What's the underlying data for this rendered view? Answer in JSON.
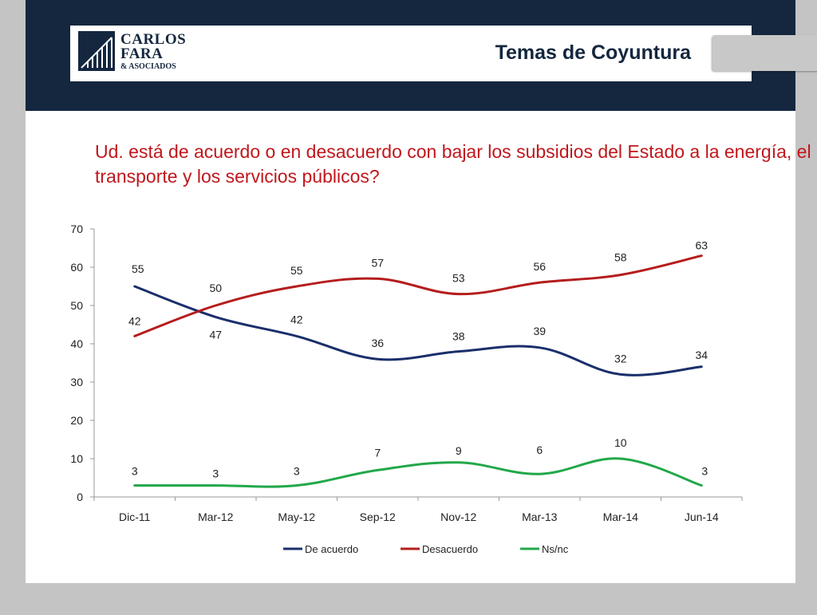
{
  "header": {
    "logo": {
      "line1": "CARLOS",
      "line2": "FARA",
      "line3": "& ASOCIADOS"
    },
    "title": "Temas de Coyuntura"
  },
  "question": "Ud. está de acuerdo o en desacuerdo con bajar los subsidios del Estado a la energía, el transporte y los servicios públicos?",
  "colors": {
    "navy": "#14273f",
    "red": "#c0171c",
    "green": "#22a84a",
    "series_blue": "#1a2f6b",
    "series_red": "#b51d1d"
  },
  "chart_data": {
    "type": "line",
    "title": "",
    "xlabel": "",
    "ylabel": "",
    "categories": [
      "Dic-11",
      "Mar-12",
      "May-12",
      "Sep-12",
      "Nov-12",
      "Mar-13",
      "Mar-14",
      "Jun-14"
    ],
    "ylim": [
      0,
      70
    ],
    "yticks": [
      0,
      10,
      20,
      30,
      40,
      50,
      60,
      70
    ],
    "grid": false,
    "legend_position": "bottom",
    "series": [
      {
        "name": "De acuerdo",
        "color": "#1a2f6b",
        "values": [
          55,
          47,
          42,
          36,
          38,
          39,
          32,
          34
        ],
        "labels": [
          "55",
          "47",
          "42",
          "36",
          "38",
          "39",
          "32",
          "34"
        ]
      },
      {
        "name": "Desacuerdo",
        "color": "#b51d1d",
        "values": [
          42,
          50,
          55,
          57,
          53,
          56,
          58,
          63
        ],
        "labels": [
          "42",
          "50",
          "55",
          "57",
          "53",
          "56",
          "58",
          "63"
        ]
      },
      {
        "name": "Ns/nc",
        "color": "#22a84a",
        "values": [
          3,
          3,
          3,
          7,
          9,
          6,
          10,
          3
        ],
        "labels": [
          "3",
          "3",
          "3",
          "7",
          "9",
          "6",
          "10",
          "3"
        ]
      }
    ]
  }
}
